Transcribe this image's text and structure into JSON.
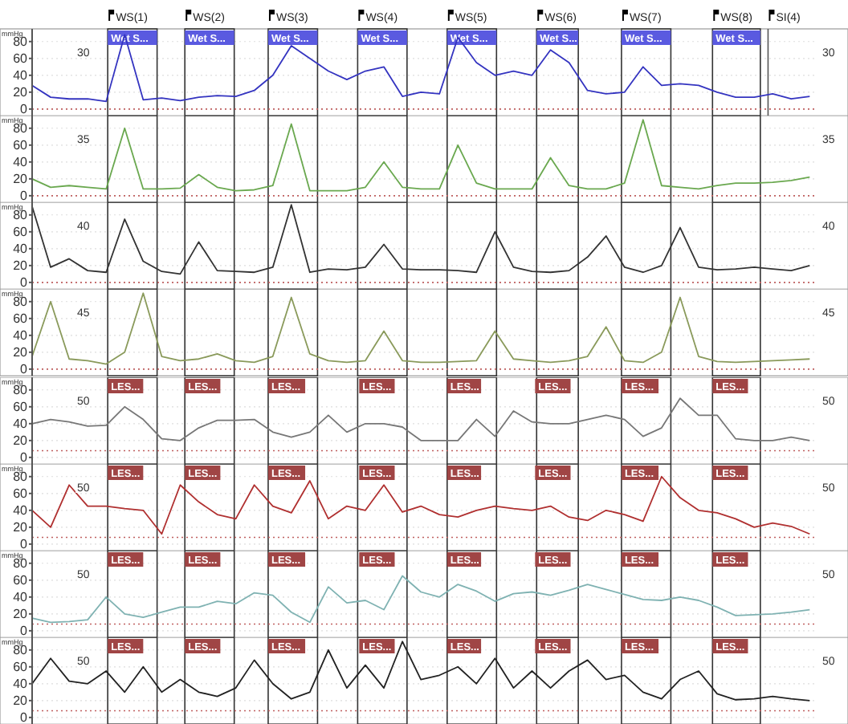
{
  "chart_data": [
    {
      "type": "line",
      "ylabel": "mmHg",
      "categories": [
        null,
        null,
        null,
        null,
        null,
        null,
        null,
        null,
        null,
        null,
        null,
        null,
        null,
        null,
        null,
        null,
        null,
        null,
        null,
        null,
        null,
        null,
        null,
        null,
        null,
        null,
        null,
        null,
        null,
        null,
        null,
        null,
        null,
        null,
        null,
        null,
        null,
        null,
        null,
        null,
        null,
        null,
        null
      ],
      "ylim": [
        -8,
        95
      ],
      "yticks": [
        0,
        20,
        40,
        60,
        80
      ],
      "grid": "y",
      "tick_labels": "y",
      "annotations": [
        "30",
        "30",
        "WS(1)",
        "WS(2)",
        "WS(3)",
        "WS(4)",
        "WS(5)",
        "WS(6)",
        "WS(7)",
        "WS(8)",
        "SI(4)",
        "Wet S...",
        "Wet S...",
        "Wet S...",
        "Wet S...",
        "Wet S...",
        "Wet S...",
        "Wet S...",
        "Wet S..."
      ],
      "series": [
        {
          "color": "#3434c0",
          "values": [
            28,
            14,
            12,
            12,
            9,
            88,
            11,
            13,
            10,
            14,
            16,
            15,
            22,
            40,
            75,
            60,
            45,
            35,
            45,
            50,
            15,
            20,
            18,
            85,
            55,
            40,
            45,
            40,
            70,
            55,
            22,
            18,
            20,
            50,
            28,
            30,
            28,
            20,
            14,
            14,
            18,
            12,
            15
          ]
        }
      ],
      "ref_lines": [
        {
          "axis": "y",
          "value": 0,
          "color": "#c06060",
          "line_style": "dotted"
        }
      ]
    },
    {
      "type": "line",
      "ylabel": "mmHg",
      "categories": [
        null,
        null,
        null,
        null,
        null,
        null,
        null,
        null,
        null,
        null,
        null,
        null,
        null,
        null,
        null,
        null,
        null,
        null,
        null,
        null,
        null,
        null,
        null,
        null,
        null,
        null,
        null,
        null,
        null,
        null,
        null,
        null,
        null,
        null,
        null,
        null,
        null,
        null,
        null,
        null,
        null,
        null,
        null
      ],
      "ylim": [
        -8,
        95
      ],
      "yticks": [
        0,
        20,
        40,
        60,
        80
      ],
      "grid": "y",
      "tick_labels": "y",
      "annotations": [
        "35",
        "35"
      ],
      "series": [
        {
          "color": "#6aa84f",
          "values": [
            20,
            10,
            12,
            10,
            8,
            80,
            8,
            8,
            9,
            25,
            10,
            6,
            7,
            12,
            85,
            6,
            6,
            6,
            10,
            40,
            10,
            8,
            8,
            60,
            15,
            8,
            8,
            8,
            45,
            12,
            8,
            8,
            15,
            90,
            12,
            10,
            8,
            12,
            15,
            15,
            16,
            18,
            22
          ]
        }
      ],
      "ref_lines": [
        {
          "axis": "y",
          "value": 0,
          "color": "#c06060",
          "line_style": "dotted"
        }
      ]
    },
    {
      "type": "line",
      "ylabel": "mmHg",
      "categories": [
        null,
        null,
        null,
        null,
        null,
        null,
        null,
        null,
        null,
        null,
        null,
        null,
        null,
        null,
        null,
        null,
        null,
        null,
        null,
        null,
        null,
        null,
        null,
        null,
        null,
        null,
        null,
        null,
        null,
        null,
        null,
        null,
        null,
        null,
        null,
        null,
        null,
        null,
        null,
        null,
        null,
        null,
        null
      ],
      "ylim": [
        -8,
        95
      ],
      "yticks": [
        0,
        20,
        40,
        60,
        80
      ],
      "grid": "y",
      "tick_labels": "y",
      "annotations": [
        "40",
        "40"
      ],
      "series": [
        {
          "color": "#333333",
          "values": [
            90,
            18,
            28,
            14,
            12,
            75,
            25,
            13,
            10,
            48,
            14,
            13,
            12,
            18,
            92,
            12,
            16,
            15,
            18,
            45,
            16,
            15,
            15,
            14,
            12,
            60,
            18,
            13,
            12,
            14,
            30,
            55,
            18,
            12,
            20,
            65,
            18,
            15,
            16,
            18,
            16,
            14,
            20
          ]
        }
      ],
      "ref_lines": [
        {
          "axis": "y",
          "value": 0,
          "color": "#c06060",
          "line_style": "dotted"
        }
      ]
    },
    {
      "type": "line",
      "ylabel": "mmHg",
      "categories": [
        null,
        null,
        null,
        null,
        null,
        null,
        null,
        null,
        null,
        null,
        null,
        null,
        null,
        null,
        null,
        null,
        null,
        null,
        null,
        null,
        null,
        null,
        null,
        null,
        null,
        null,
        null,
        null,
        null,
        null,
        null,
        null,
        null,
        null,
        null,
        null,
        null,
        null,
        null,
        null,
        null,
        null,
        null
      ],
      "ylim": [
        -8,
        95
      ],
      "yticks": [
        0,
        20,
        40,
        60,
        80
      ],
      "grid": "y",
      "tick_labels": "y",
      "annotations": [
        "45",
        "45"
      ],
      "series": [
        {
          "color": "#8a9a5b",
          "values": [
            15,
            80,
            12,
            10,
            6,
            20,
            90,
            15,
            10,
            12,
            18,
            10,
            8,
            15,
            85,
            18,
            10,
            8,
            10,
            45,
            10,
            8,
            8,
            9,
            10,
            45,
            12,
            10,
            8,
            10,
            15,
            50,
            10,
            8,
            20,
            85,
            15,
            9,
            8,
            9,
            10,
            11,
            12
          ]
        }
      ],
      "ref_lines": [
        {
          "axis": "y",
          "value": 0,
          "color": "#c06060",
          "line_style": "dotted"
        }
      ]
    },
    {
      "type": "line",
      "ylabel": "mmHg",
      "categories": [
        null,
        null,
        null,
        null,
        null,
        null,
        null,
        null,
        null,
        null,
        null,
        null,
        null,
        null,
        null,
        null,
        null,
        null,
        null,
        null,
        null,
        null,
        null,
        null,
        null,
        null,
        null,
        null,
        null,
        null,
        null,
        null,
        null,
        null,
        null,
        null,
        null,
        null,
        null,
        null,
        null,
        null,
        null
      ],
      "ylim": [
        -8,
        95
      ],
      "yticks": [
        0,
        20,
        40,
        60,
        80
      ],
      "grid": "y",
      "tick_labels": "y",
      "annotations": [
        "50",
        "50",
        "LES...",
        "LES...",
        "LES...",
        "LES...",
        "LES...",
        "LES...",
        "LES...",
        "LES..."
      ],
      "series": [
        {
          "color": "#777777",
          "values": [
            40,
            45,
            42,
            37,
            38,
            60,
            45,
            22,
            20,
            35,
            44,
            44,
            45,
            30,
            24,
            30,
            50,
            30,
            40,
            40,
            36,
            20,
            20,
            20,
            45,
            25,
            55,
            42,
            40,
            40,
            45,
            50,
            45,
            25,
            35,
            70,
            50,
            50,
            22,
            20,
            20,
            24,
            20
          ]
        }
      ],
      "ref_lines": [
        {
          "axis": "y",
          "value": 8,
          "color": "#c06060",
          "line_style": "dotted"
        }
      ]
    },
    {
      "type": "line",
      "ylabel": "mmHg",
      "categories": [
        null,
        null,
        null,
        null,
        null,
        null,
        null,
        null,
        null,
        null,
        null,
        null,
        null,
        null,
        null,
        null,
        null,
        null,
        null,
        null,
        null,
        null,
        null,
        null,
        null,
        null,
        null,
        null,
        null,
        null,
        null,
        null,
        null,
        null,
        null,
        null,
        null,
        null,
        null,
        null,
        null,
        null,
        null
      ],
      "ylim": [
        -8,
        95
      ],
      "yticks": [
        0,
        20,
        40,
        60,
        80
      ],
      "grid": "y",
      "tick_labels": "y",
      "annotations": [
        "50",
        "50",
        "LES...",
        "LES...",
        "LES...",
        "LES...",
        "LES...",
        "LES...",
        "LES...",
        "LES..."
      ],
      "series": [
        {
          "color": "#b03030",
          "values": [
            40,
            20,
            70,
            45,
            45,
            42,
            40,
            12,
            70,
            50,
            35,
            30,
            70,
            45,
            37,
            75,
            30,
            45,
            40,
            70,
            38,
            45,
            35,
            32,
            40,
            45,
            42,
            40,
            45,
            32,
            28,
            40,
            35,
            27,
            80,
            55,
            40,
            37,
            30,
            20,
            25,
            21,
            12
          ]
        }
      ],
      "ref_lines": [
        {
          "axis": "y",
          "value": 8,
          "color": "#c06060",
          "line_style": "dotted"
        }
      ]
    },
    {
      "type": "line",
      "ylabel": "mmHg",
      "categories": [
        null,
        null,
        null,
        null,
        null,
        null,
        null,
        null,
        null,
        null,
        null,
        null,
        null,
        null,
        null,
        null,
        null,
        null,
        null,
        null,
        null,
        null,
        null,
        null,
        null,
        null,
        null,
        null,
        null,
        null,
        null,
        null,
        null,
        null,
        null,
        null,
        null,
        null,
        null,
        null,
        null,
        null,
        null
      ],
      "ylim": [
        -8,
        95
      ],
      "yticks": [
        0,
        20,
        40,
        60,
        80
      ],
      "grid": "y",
      "tick_labels": "y",
      "annotations": [
        "50",
        "50",
        "LES...",
        "LES...",
        "LES...",
        "LES...",
        "LES...",
        "LES...",
        "LES...",
        "LES..."
      ],
      "series": [
        {
          "color": "#7fb2b2",
          "values": [
            15,
            10,
            11,
            13,
            40,
            20,
            16,
            22,
            28,
            28,
            35,
            32,
            45,
            42,
            22,
            10,
            52,
            33,
            36,
            25,
            65,
            46,
            40,
            55,
            47,
            35,
            44,
            46,
            42,
            48,
            55,
            49,
            43,
            37,
            36,
            40,
            36,
            28,
            18,
            19,
            20,
            22,
            25
          ]
        }
      ],
      "ref_lines": [
        {
          "axis": "y",
          "value": 8,
          "color": "#c06060",
          "line_style": "dotted"
        }
      ]
    },
    {
      "type": "line",
      "ylabel": "mmHg",
      "categories": [
        null,
        null,
        null,
        null,
        null,
        null,
        null,
        null,
        null,
        null,
        null,
        null,
        null,
        null,
        null,
        null,
        null,
        null,
        null,
        null,
        null,
        null,
        null,
        null,
        null,
        null,
        null,
        null,
        null,
        null,
        null,
        null,
        null,
        null,
        null,
        null,
        null,
        null,
        null,
        null,
        null,
        null,
        null
      ],
      "ylim": [
        -8,
        95
      ],
      "yticks": [
        0,
        20,
        40,
        60,
        80
      ],
      "grid": "y",
      "tick_labels": "y",
      "annotations": [
        "50",
        "50",
        "LES...",
        "LES...",
        "LES...",
        "LES...",
        "LES...",
        "LES...",
        "LES...",
        "LES..."
      ],
      "series": [
        {
          "color": "#222222",
          "values": [
            40,
            70,
            43,
            40,
            55,
            30,
            60,
            30,
            45,
            30,
            25,
            35,
            68,
            40,
            22,
            30,
            80,
            35,
            62,
            35,
            90,
            45,
            50,
            60,
            40,
            70,
            35,
            55,
            35,
            55,
            68,
            45,
            50,
            30,
            22,
            45,
            55,
            28,
            21,
            22,
            25,
            22,
            20
          ]
        }
      ],
      "ref_lines": [
        {
          "axis": "y",
          "value": 8,
          "color": "#c06060",
          "line_style": "dotted"
        }
      ]
    }
  ]
}
